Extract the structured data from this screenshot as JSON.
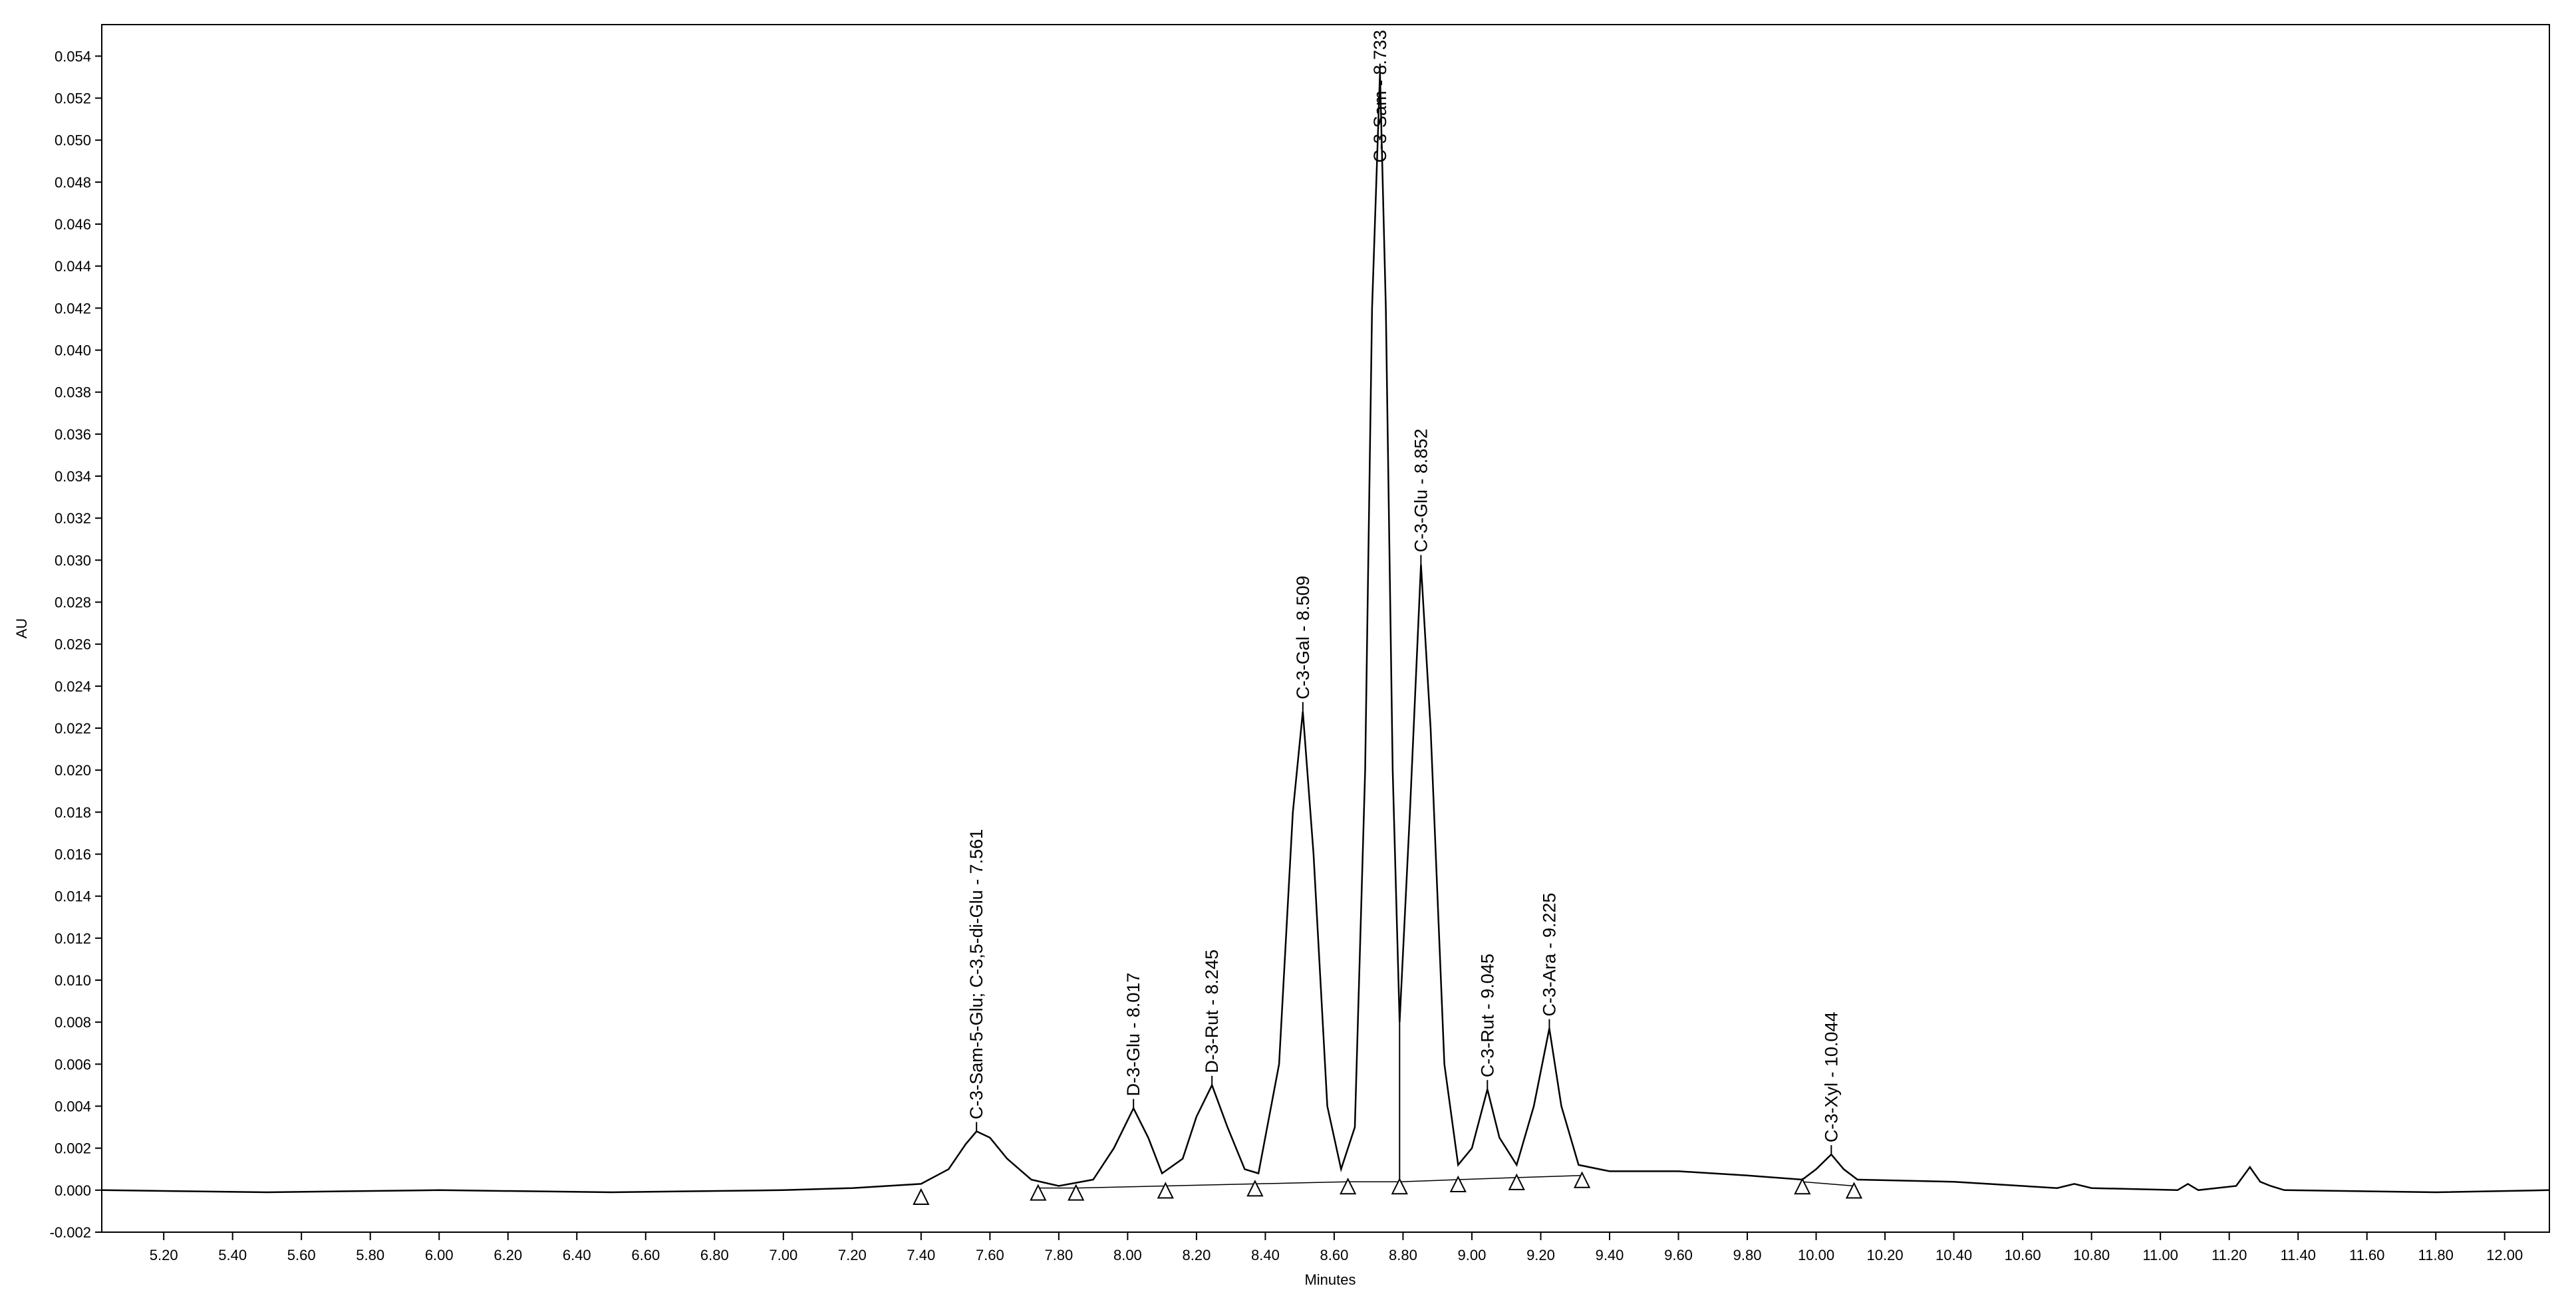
{
  "chart_data": {
    "type": "line",
    "xlabel": "Minutes",
    "ylabel": "AU",
    "color": "#000000",
    "x": [
      5.02,
      5.5,
      6.0,
      6.5,
      7.0,
      7.2,
      7.4,
      7.48,
      7.53,
      7.561,
      7.6,
      7.65,
      7.72,
      7.8,
      7.9,
      7.96,
      8.017,
      8.06,
      8.1,
      8.16,
      8.2,
      8.245,
      8.29,
      8.34,
      8.38,
      8.44,
      8.48,
      8.509,
      8.54,
      8.58,
      8.62,
      8.66,
      8.69,
      8.71,
      8.733,
      8.75,
      8.77,
      8.79,
      8.82,
      8.852,
      8.88,
      8.92,
      8.96,
      9.0,
      9.045,
      9.08,
      9.13,
      9.18,
      9.225,
      9.26,
      9.31,
      9.4,
      9.6,
      9.8,
      9.96,
      10.0,
      10.044,
      10.08,
      10.12,
      10.4,
      10.7,
      10.75,
      10.8,
      11.05,
      11.08,
      11.11,
      11.22,
      11.26,
      11.29,
      11.32,
      11.36,
      11.8,
      12.13
    ],
    "values": [
      0.0,
      -0.0001,
      0.0,
      -0.0001,
      0.0,
      0.0001,
      0.0003,
      0.001,
      0.0022,
      0.0028,
      0.0025,
      0.0015,
      0.0005,
      0.0002,
      0.0005,
      0.002,
      0.0039,
      0.0025,
      0.0008,
      0.0015,
      0.0035,
      0.005,
      0.003,
      0.001,
      0.0008,
      0.006,
      0.018,
      0.0228,
      0.016,
      0.004,
      0.001,
      0.003,
      0.02,
      0.042,
      0.0532,
      0.042,
      0.02,
      0.008,
      0.018,
      0.0298,
      0.022,
      0.006,
      0.0012,
      0.002,
      0.0048,
      0.0025,
      0.0012,
      0.004,
      0.0077,
      0.004,
      0.0012,
      0.0009,
      0.0009,
      0.0007,
      0.0005,
      0.001,
      0.0017,
      0.001,
      0.0005,
      0.0004,
      0.0001,
      0.0003,
      0.0001,
      0.0,
      0.0003,
      0.0,
      0.0002,
      0.0011,
      0.0004,
      0.0002,
      0.0,
      -0.0001,
      0.0
    ],
    "baseline_markers": {
      "x": [
        7.4,
        7.74,
        7.85,
        8.11,
        8.37,
        8.64,
        8.79,
        8.96,
        9.13,
        9.32,
        9.96,
        10.11
      ],
      "y": [
        -0.0001,
        0.0001,
        0.0001,
        0.0002,
        0.0003,
        0.0004,
        0.0004,
        0.0005,
        0.0006,
        0.0007,
        0.0004,
        0.0002
      ]
    },
    "annotations": [
      {
        "text": "C-3-Sam-5-Glu; C-3,5-di-Glu - 7.561",
        "x": 7.561,
        "y": 0.0028
      },
      {
        "text": "D-3-Glu - 8.017",
        "x": 8.017,
        "y": 0.0039
      },
      {
        "text": "D-3-Rut - 8.245",
        "x": 8.245,
        "y": 0.005
      },
      {
        "text": "C-3-Gal - 8.509",
        "x": 8.509,
        "y": 0.0228
      },
      {
        "text": "C-3-Sam - 8.733",
        "x": 8.733,
        "y": 0.0532
      },
      {
        "text": "C-3-Glu - 8.852",
        "x": 8.852,
        "y": 0.0298
      },
      {
        "text": "C-3-Rut - 9.045",
        "x": 9.045,
        "y": 0.0048
      },
      {
        "text": "C-3-Ara - 9.225",
        "x": 9.225,
        "y": 0.0077
      },
      {
        "text": "C-3-Xyl - 10.044",
        "x": 10.044,
        "y": 0.0017
      }
    ],
    "xlim": [
      5.02,
      12.13
    ],
    "ylim": [
      -0.002,
      0.0555
    ],
    "xticks": [
      {
        "value": 5.2,
        "label": "5.20"
      },
      {
        "value": 5.4,
        "label": "5.40"
      },
      {
        "value": 5.6,
        "label": "5.60"
      },
      {
        "value": 5.8,
        "label": "5.80"
      },
      {
        "value": 6.0,
        "label": "6.00"
      },
      {
        "value": 6.2,
        "label": "6.20"
      },
      {
        "value": 6.4,
        "label": "6.40"
      },
      {
        "value": 6.6,
        "label": "6.60"
      },
      {
        "value": 6.8,
        "label": "6.80"
      },
      {
        "value": 7.0,
        "label": "7.00"
      },
      {
        "value": 7.2,
        "label": "7.20"
      },
      {
        "value": 7.4,
        "label": "7.40"
      },
      {
        "value": 7.6,
        "label": "7.60"
      },
      {
        "value": 7.8,
        "label": "7.80"
      },
      {
        "value": 8.0,
        "label": "8.00"
      },
      {
        "value": 8.2,
        "label": "8.20"
      },
      {
        "value": 8.4,
        "label": "8.40"
      },
      {
        "value": 8.6,
        "label": "8.60"
      },
      {
        "value": 8.8,
        "label": "8.80"
      },
      {
        "value": 9.0,
        "label": "9.00"
      },
      {
        "value": 9.2,
        "label": "9.20"
      },
      {
        "value": 9.4,
        "label": "9.40"
      },
      {
        "value": 9.6,
        "label": "9.60"
      },
      {
        "value": 9.8,
        "label": "9.80"
      },
      {
        "value": 10.0,
        "label": "10.00"
      },
      {
        "value": 10.2,
        "label": "10.20"
      },
      {
        "value": 10.4,
        "label": "10.40"
      },
      {
        "value": 10.6,
        "label": "10.60"
      },
      {
        "value": 10.8,
        "label": "10.80"
      },
      {
        "value": 11.0,
        "label": "11.00"
      },
      {
        "value": 11.2,
        "label": "11.20"
      },
      {
        "value": 11.4,
        "label": "11.40"
      },
      {
        "value": 11.6,
        "label": "11.60"
      },
      {
        "value": 11.8,
        "label": "11.80"
      },
      {
        "value": 12.0,
        "label": "12.00"
      }
    ],
    "yticks": [
      -0.002,
      {
        "value": 0,
        "label": "0.000"
      },
      0.002,
      0.004,
      0.006,
      0.008,
      {
        "value": 0.01,
        "label": "0.010"
      },
      0.012,
      0.014,
      0.016,
      0.018,
      {
        "value": 0.02,
        "label": "0.020"
      },
      0.022,
      0.024,
      0.026,
      0.028,
      {
        "value": 0.03,
        "label": "0.030"
      },
      0.032,
      0.034,
      0.036,
      0.038,
      {
        "value": 0.04,
        "label": "0.040"
      },
      0.042,
      0.044,
      0.046,
      0.048,
      {
        "value": 0.05,
        "label": "0.050"
      },
      0.052,
      0.054
    ]
  }
}
